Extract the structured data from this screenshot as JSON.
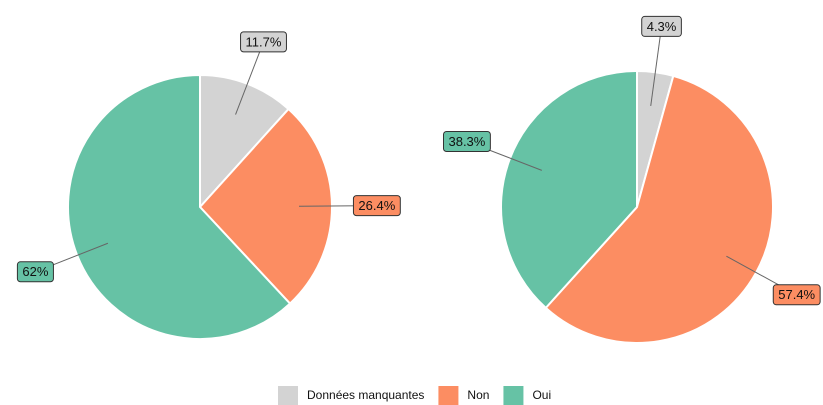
{
  "legend": {
    "categories": [
      "Données manquantes",
      "Non",
      "Oui"
    ],
    "colors": [
      "#d3d3d3",
      "#fc8d62",
      "#66c2a5"
    ]
  },
  "chart_data": [
    {
      "type": "pie",
      "values": [
        11.7,
        26.4,
        62
      ],
      "value_labels": [
        "11.7%",
        "26.4%",
        "62%"
      ]
    },
    {
      "type": "pie",
      "values": [
        4.3,
        57.4,
        38.3
      ],
      "value_labels": [
        "4.3%",
        "57.4%",
        "38.3%"
      ]
    }
  ]
}
